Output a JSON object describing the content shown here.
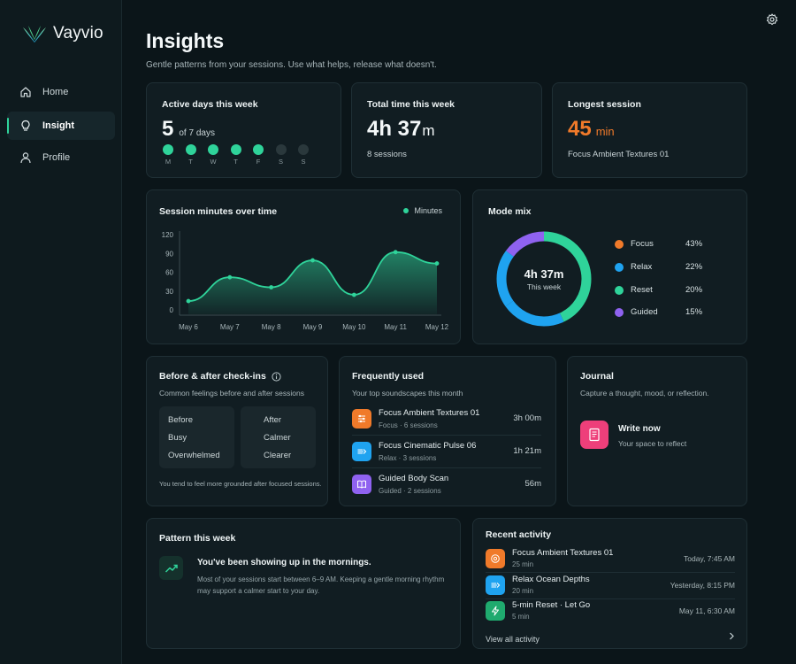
{
  "app": {
    "name": "Vayvio"
  },
  "sidebar": {
    "items": [
      {
        "label": "Home",
        "icon": "home-icon"
      },
      {
        "label": "Insight",
        "icon": "lightbulb-icon",
        "active": true
      },
      {
        "label": "Profile",
        "icon": "user-icon"
      }
    ]
  },
  "header": {
    "title": "Insights",
    "subtitle": "Gentle patterns from your sessions. Use what helps, release what doesn't."
  },
  "colors": {
    "accent": "#2fd39a",
    "orange": "#f07a2a",
    "blue": "#1fa3f0",
    "purple": "#8f62f0",
    "pink": "#ee3f7a"
  },
  "stats": {
    "active_days": {
      "title": "Active days this week",
      "value": "5",
      "suffix": "of 7 days",
      "days": [
        {
          "label": "M",
          "active": true
        },
        {
          "label": "T",
          "active": true
        },
        {
          "label": "W",
          "active": true
        },
        {
          "label": "T",
          "active": true
        },
        {
          "label": "F",
          "active": true
        },
        {
          "label": "S",
          "active": false
        },
        {
          "label": "S",
          "active": false
        }
      ]
    },
    "total_time": {
      "title": "Total time this week",
      "value_h": "4h 37",
      "unit": "m",
      "sessions": "8 sessions"
    },
    "longest": {
      "title": "Longest session",
      "value": "45",
      "unit": "min",
      "name": "Focus Ambient Textures 01"
    }
  },
  "session_chart": {
    "title": "Session minutes over time",
    "legend": "Minutes"
  },
  "chart_data": {
    "type": "area",
    "categories": [
      "May 6",
      "May 7",
      "May 8",
      "May 9",
      "May 10",
      "May 11",
      "May 12"
    ],
    "series": [
      {
        "name": "Minutes",
        "values": [
          14,
          52,
          36,
          79,
          24,
          92,
          74
        ]
      }
    ],
    "yticks": [
      0,
      30,
      60,
      90,
      120
    ],
    "ylim": [
      0,
      120
    ],
    "grid": false
  },
  "mode_mix": {
    "title": "Mode mix",
    "center_value": "4h 37m",
    "center_label": "This week",
    "items": [
      {
        "label": "Focus",
        "pct": "43%",
        "color": "#f07a2a"
      },
      {
        "label": "Relax",
        "pct": "22%",
        "color": "#1fa3f0"
      },
      {
        "label": "Reset",
        "pct": "20%",
        "color": "#2fd39a"
      },
      {
        "label": "Guided",
        "pct": "15%",
        "color": "#8f62f0"
      }
    ]
  },
  "checkins": {
    "title": "Before & after check-ins",
    "subtitle": "Common feelings before and after sessions",
    "before": {
      "heading": "Before",
      "items": [
        "Busy",
        "Overwhelmed"
      ]
    },
    "after": {
      "heading": "After",
      "items": [
        "Calmer",
        "Clearer"
      ]
    },
    "note": "You tend to feel more grounded after focused sessions."
  },
  "frequent": {
    "title": "Frequently used",
    "subtitle": "Your top soundscapes this month",
    "items": [
      {
        "name": "Focus Ambient Textures 01",
        "meta": "Focus  ·  6 sessions",
        "duration": "3h 00m"
      },
      {
        "name": "Focus Cinematic Pulse 06",
        "meta": "Relax  ·  3 sessions",
        "duration": "1h 21m"
      },
      {
        "name": "Guided Body Scan",
        "meta": "Guided  ·  2 sessions",
        "duration": "56m"
      }
    ]
  },
  "journal": {
    "title": "Journal",
    "subtitle": "Capture a thought, mood, or reflection.",
    "action": "Write now",
    "action_sub": "Your space to reflect"
  },
  "pattern": {
    "title": "Pattern this week",
    "headline": "You've been showing up in the mornings.",
    "body": "Most of your sessions start between 6–9 AM. Keeping a gentle morning rhythm may support a calmer start to your day."
  },
  "recent": {
    "title": "Recent activity",
    "items": [
      {
        "name": "Focus Ambient Textures 01",
        "duration": "25 min",
        "time": "Today, 7:45 AM"
      },
      {
        "name": "Relax Ocean Depths",
        "duration": "20 min",
        "time": "Yesterday, 8:15 PM"
      },
      {
        "name": "5-min Reset · Let Go",
        "duration": "5 min",
        "time": "May 11, 6:30 AM"
      }
    ],
    "view_all": "View all activity"
  }
}
